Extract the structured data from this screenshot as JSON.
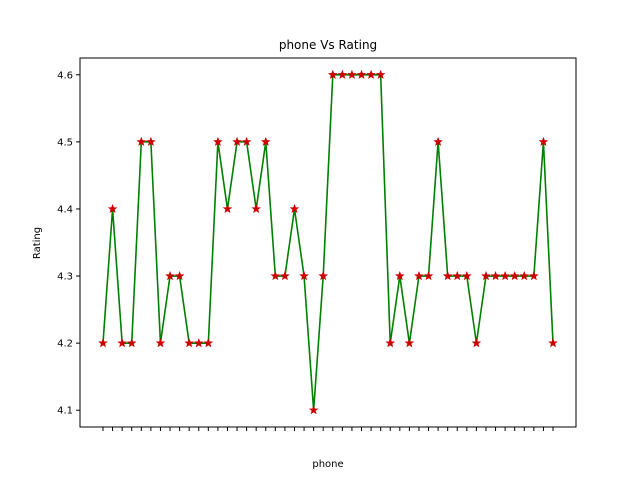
{
  "chart_data": {
    "type": "line",
    "title": "phone Vs Rating",
    "xlabel": "phone",
    "ylabel": "Rating",
    "ylim": [
      4.075,
      4.625
    ],
    "yticks": [
      4.1,
      4.2,
      4.3,
      4.4,
      4.5,
      4.6
    ],
    "ytick_labels": [
      "4.1",
      "4.2",
      "4.3",
      "4.4",
      "4.5",
      "4.6"
    ],
    "grid": false,
    "legend": "none",
    "line_color": "#008000",
    "marker_color": "#cc0000",
    "marker": "star",
    "series": [
      {
        "values": [
          4.2,
          4.4,
          4.2,
          4.2,
          4.5,
          4.5,
          4.2,
          4.3,
          4.3,
          4.2,
          4.2,
          4.2,
          4.5,
          4.4,
          4.5,
          4.5,
          4.4,
          4.5,
          4.3,
          4.3,
          4.4,
          4.3,
          4.1,
          4.3,
          4.6,
          4.6,
          4.6,
          4.6,
          4.6,
          4.6,
          4.2,
          4.3,
          4.2,
          4.3,
          4.3,
          4.5,
          4.3,
          4.3,
          4.3,
          4.2,
          4.3,
          4.3,
          4.3,
          4.3,
          4.3,
          4.3,
          4.5,
          4.2
        ]
      }
    ]
  }
}
